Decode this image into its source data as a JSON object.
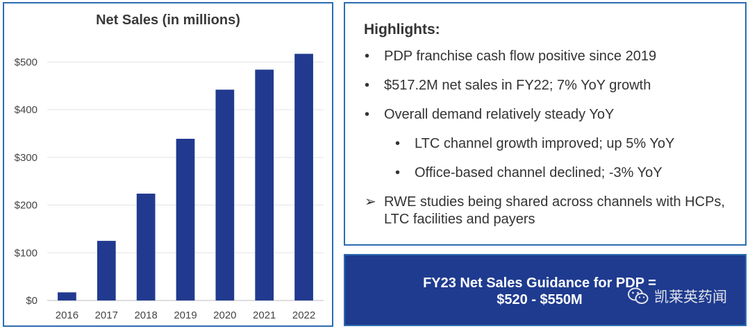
{
  "chart_data": {
    "type": "bar",
    "title": "Net Sales (in millions)",
    "categories": [
      "2016",
      "2017",
      "2018",
      "2019",
      "2020",
      "2021",
      "2022"
    ],
    "values": [
      17,
      125,
      224,
      339,
      442,
      484,
      517.2
    ],
    "ylim": [
      0,
      550
    ],
    "yticks": [
      0,
      100,
      200,
      300,
      400,
      500
    ],
    "ytick_labels": [
      "$0",
      "$100",
      "$200",
      "$300",
      "$400",
      "$500"
    ],
    "grid": true,
    "xlabel": "",
    "ylabel": "",
    "bar_color": "#213a8f"
  },
  "highlights": {
    "title": "Highlights:",
    "items": [
      {
        "bullet": "•",
        "text": "PDP franchise cash flow positive since 2019"
      },
      {
        "bullet": "•",
        "text": "$517.2M net sales in FY22; 7% YoY growth"
      },
      {
        "bullet": "•",
        "text": "Overall demand relatively steady YoY"
      },
      {
        "bullet": "•",
        "text": "LTC channel growth improved; up 5% YoY"
      },
      {
        "bullet": "•",
        "text": "Office-based channel declined; -3% YoY"
      },
      {
        "bullet": "➢",
        "text": "RWE studies being shared across channels with HCPs, LTC facilities and payers"
      }
    ]
  },
  "guidance": {
    "line1": "FY23 Net Sales Guidance for PDP =",
    "line2": "$520 - $550M"
  },
  "watermark": {
    "text": "凯莱英药闻",
    "icon": "wechat-icon"
  },
  "colors": {
    "panel_border": "#2b6cb0",
    "guidance_bg": "#1f3b8f"
  }
}
